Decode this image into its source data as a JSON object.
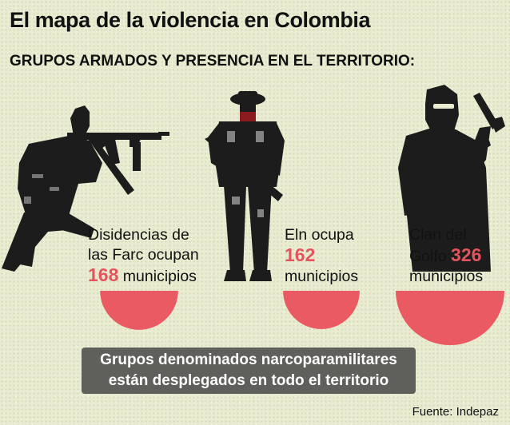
{
  "title": "El mapa de la violencia en Colombia",
  "subtitle": "GRUPOS ARMADOS Y PRESENCIA EN EL TERRITORIO:",
  "groups": [
    {
      "line1": "Disidencias de",
      "line2": "las Farc ocupan",
      "value": "168",
      "unit": "municipios"
    },
    {
      "line1": "Eln ocupa",
      "value": "162",
      "unit": "municipios"
    },
    {
      "line1": "Clan del",
      "line2": "Golfo",
      "value": "326",
      "unit": "municipios"
    }
  ],
  "semicircle_color": "#e95a62",
  "banner": {
    "line1": "Grupos denominados narcoparamilitares",
    "line2": "están desplegados en todo el territorio"
  },
  "source": "Fuente: Indepaz"
}
